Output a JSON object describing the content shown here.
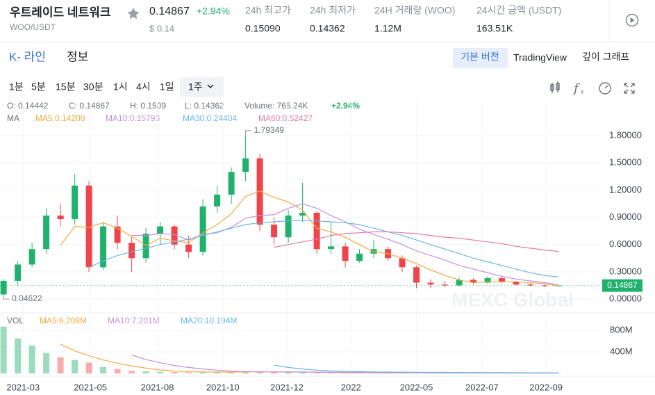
{
  "header": {
    "pair_name": "우트레이드 네트워크",
    "pair_code": "WOO/USDT",
    "price": "0.14867",
    "change": "+2.94%",
    "usd_price": "$ 0.14",
    "stats": [
      {
        "label": "24h 최고가",
        "value": "0.15090"
      },
      {
        "label": "24h 최저가",
        "value": "0.14362"
      },
      {
        "label": "24H 거래량 (WOO)",
        "value": "1.12M"
      },
      {
        "label": "24시간 금액 (USDT)",
        "value": "163.51K"
      }
    ]
  },
  "tabs": {
    "items": [
      "K- 라인",
      "정보"
    ],
    "views": [
      "기본 버전",
      "TradingView",
      "깊이 그래프"
    ]
  },
  "intervals": [
    "1분",
    "5분",
    "15분",
    "30분",
    "1시",
    "4시",
    "1일",
    "1주"
  ],
  "chart_data": [
    {
      "type": "candlestick",
      "ohlc_info": [
        "O: 0.14442",
        "C: 0.14867",
        "H: 0.1509",
        "L: 0.14362",
        "Volume: 765.24K",
        "+2.94%"
      ],
      "ma_title": "MA",
      "watermark": "MEXC Global",
      "up_color": "#20b26c",
      "down_color": "#ef454a",
      "candles": {
        "open": [
          0.05,
          0.2,
          0.38,
          0.55,
          0.92,
          0.88,
          1.25,
          0.35,
          0.8,
          0.62,
          0.45,
          0.72,
          0.8,
          0.6,
          0.52,
          1.02,
          1.15,
          1.4,
          1.55,
          0.82,
          0.68,
          0.92,
          0.95,
          0.55,
          0.58,
          0.42,
          0.5,
          0.55,
          0.45,
          0.35,
          0.18,
          0.16,
          0.15,
          0.21,
          0.18,
          0.23,
          0.19,
          0.16,
          0.15,
          0.14442
        ],
        "high": [
          0.22,
          0.42,
          0.62,
          1.0,
          1.05,
          1.38,
          1.3,
          0.85,
          0.92,
          0.68,
          0.78,
          0.85,
          0.82,
          0.7,
          1.1,
          1.25,
          1.45,
          1.79349,
          1.6,
          0.9,
          0.98,
          1.28,
          0.97,
          0.85,
          0.62,
          0.55,
          0.65,
          0.58,
          0.48,
          0.37,
          0.22,
          0.2,
          0.24,
          0.23,
          0.25,
          0.26,
          0.2,
          0.18,
          0.16,
          0.1509
        ],
        "low": [
          0.04622,
          0.15,
          0.35,
          0.5,
          0.8,
          0.82,
          0.3,
          0.32,
          0.55,
          0.3,
          0.4,
          0.6,
          0.55,
          0.45,
          0.48,
          0.95,
          1.05,
          1.3,
          0.75,
          0.6,
          0.62,
          0.85,
          0.5,
          0.5,
          0.35,
          0.4,
          0.45,
          0.42,
          0.3,
          0.12,
          0.12,
          0.13,
          0.14,
          0.16,
          0.17,
          0.17,
          0.15,
          0.14,
          0.13,
          0.14362
        ],
        "close": [
          0.2,
          0.38,
          0.55,
          0.92,
          0.88,
          1.25,
          0.35,
          0.8,
          0.62,
          0.45,
          0.72,
          0.8,
          0.6,
          0.52,
          1.02,
          1.15,
          1.4,
          1.55,
          0.82,
          0.68,
          0.92,
          0.95,
          0.55,
          0.58,
          0.42,
          0.5,
          0.55,
          0.45,
          0.35,
          0.18,
          0.16,
          0.15,
          0.21,
          0.18,
          0.23,
          0.19,
          0.16,
          0.15,
          0.14442,
          0.14867
        ]
      },
      "series": [
        {
          "name": "MA5:0.14200",
          "color": "#f4a940",
          "values": [
            null,
            null,
            null,
            null,
            0.59,
            0.8,
            0.79,
            0.84,
            0.78,
            0.69,
            0.59,
            0.67,
            0.64,
            0.62,
            0.73,
            0.82,
            0.94,
            1.13,
            1.19,
            1.12,
            1.07,
            0.98,
            0.78,
            0.74,
            0.68,
            0.6,
            0.52,
            0.5,
            0.45,
            0.39,
            0.32,
            0.26,
            0.21,
            0.18,
            0.19,
            0.19,
            0.19,
            0.18,
            0.17,
            0.142
          ]
        },
        {
          "name": "MA10:0.15793",
          "color": "#c48fe0",
          "values": [
            null,
            null,
            null,
            null,
            null,
            null,
            null,
            null,
            null,
            0.7,
            0.7,
            0.72,
            0.71,
            0.65,
            0.71,
            0.73,
            0.79,
            0.89,
            0.92,
            0.93,
            1.0,
            1.05,
            1.0,
            0.92,
            0.85,
            0.77,
            0.71,
            0.66,
            0.6,
            0.53,
            0.48,
            0.43,
            0.37,
            0.33,
            0.29,
            0.25,
            0.22,
            0.2,
            0.18,
            0.15793
          ]
        },
        {
          "name": "MA30:0.24404",
          "color": "#6cb5ea",
          "values": [
            null,
            null,
            null,
            null,
            null,
            null,
            0.35,
            0.42,
            0.48,
            0.52,
            0.56,
            0.6,
            0.63,
            0.66,
            0.7,
            0.74,
            0.78,
            0.82,
            0.84,
            0.85,
            0.86,
            0.87,
            0.86,
            0.85,
            0.84,
            0.82,
            0.78,
            0.74,
            0.7,
            0.65,
            0.6,
            0.55,
            0.5,
            0.45,
            0.41,
            0.37,
            0.33,
            0.29,
            0.26,
            0.24404
          ]
        },
        {
          "name": "MA60:0.52427",
          "color": "#e37aa5",
          "values": [
            null,
            null,
            null,
            null,
            null,
            null,
            null,
            null,
            null,
            null,
            null,
            null,
            null,
            null,
            null,
            null,
            null,
            null,
            null,
            0.57,
            0.6,
            0.63,
            0.66,
            0.7,
            0.72,
            0.73,
            0.74,
            0.74,
            0.73,
            0.72,
            0.7,
            0.68,
            0.67,
            0.65,
            0.63,
            0.61,
            0.58,
            0.56,
            0.54,
            0.52427
          ]
        }
      ],
      "ylim": [
        -0.153,
        2.183
      ],
      "yticks": [
        {
          "value": 0,
          "label": "0.00000"
        },
        {
          "value": 0.3,
          "label": "0.30000"
        },
        {
          "value": 0.6,
          "label": "0.60000"
        },
        {
          "value": 0.9,
          "label": "0.90000"
        },
        {
          "value": 1.2,
          "label": "1.20000"
        },
        {
          "value": 1.5,
          "label": "1.50000"
        },
        {
          "value": 1.8,
          "label": "1.80000"
        }
      ],
      "xlim": [
        -0.25,
        41.95
      ],
      "xticks": [
        {
          "value": 1.37,
          "label": "2021-03"
        },
        {
          "value": 6.1,
          "label": "2021-05"
        },
        {
          "value": 10.8,
          "label": "2021-08"
        },
        {
          "value": 15.4,
          "label": "2021-10"
        },
        {
          "value": 19.9,
          "label": "2021-12"
        },
        {
          "value": 24.4,
          "label": "2022"
        },
        {
          "value": 29.0,
          "label": "2022-05"
        },
        {
          "value": 33.6,
          "label": "2022-07"
        },
        {
          "value": 38.1,
          "label": "2022-09"
        }
      ],
      "grid": true
    },
    {
      "type": "bar",
      "title": "VOL",
      "values": [
        870,
        650,
        520,
        380,
        300,
        250,
        200,
        120,
        80,
        50,
        40,
        30,
        25,
        20,
        30,
        25,
        30,
        40,
        30,
        25,
        20,
        20,
        15,
        15,
        12,
        10,
        10,
        10,
        10,
        12,
        10,
        8,
        8,
        8,
        8,
        7,
        7,
        6,
        6,
        5
      ],
      "series": [
        {
          "name": "MA5:6.208M",
          "color": "#f4a940",
          "values": [
            null,
            null,
            null,
            null,
            544,
            420,
            330,
            250,
            190,
            140,
            98,
            64,
            45,
            33,
            29,
            26,
            26,
            29,
            31,
            30,
            29,
            27,
            22,
            19,
            16,
            14,
            12,
            11,
            10,
            10,
            10,
            10,
            10,
            9,
            8,
            8,
            8,
            7,
            7,
            6.208
          ]
        },
        {
          "name": "MA10:7.201M",
          "color": "#c48fe0",
          "values": [
            null,
            null,
            null,
            null,
            null,
            null,
            null,
            null,
            null,
            342,
            259,
            197,
            147,
            111,
            84,
            61,
            44,
            36,
            31,
            29,
            27,
            26,
            25,
            24,
            22,
            20,
            18,
            16,
            15,
            14,
            13,
            12,
            11,
            10,
            10,
            9,
            9,
            8,
            8,
            7.201
          ]
        },
        {
          "name": "MA20:10.194M",
          "color": "#6cb5ea",
          "values": [
            null,
            null,
            null,
            null,
            null,
            null,
            null,
            null,
            null,
            null,
            null,
            null,
            null,
            null,
            null,
            null,
            null,
            null,
            null,
            153,
            111,
            82,
            61,
            48,
            39,
            33,
            29,
            26,
            24,
            22,
            20,
            19,
            18,
            17,
            15,
            14,
            13,
            12,
            11,
            10.194
          ]
        }
      ],
      "ylim": [
        -38.7,
        1058
      ],
      "yticks": [
        {
          "value": 400,
          "label": "400M"
        },
        {
          "value": 800,
          "label": "800M"
        }
      ]
    }
  ]
}
